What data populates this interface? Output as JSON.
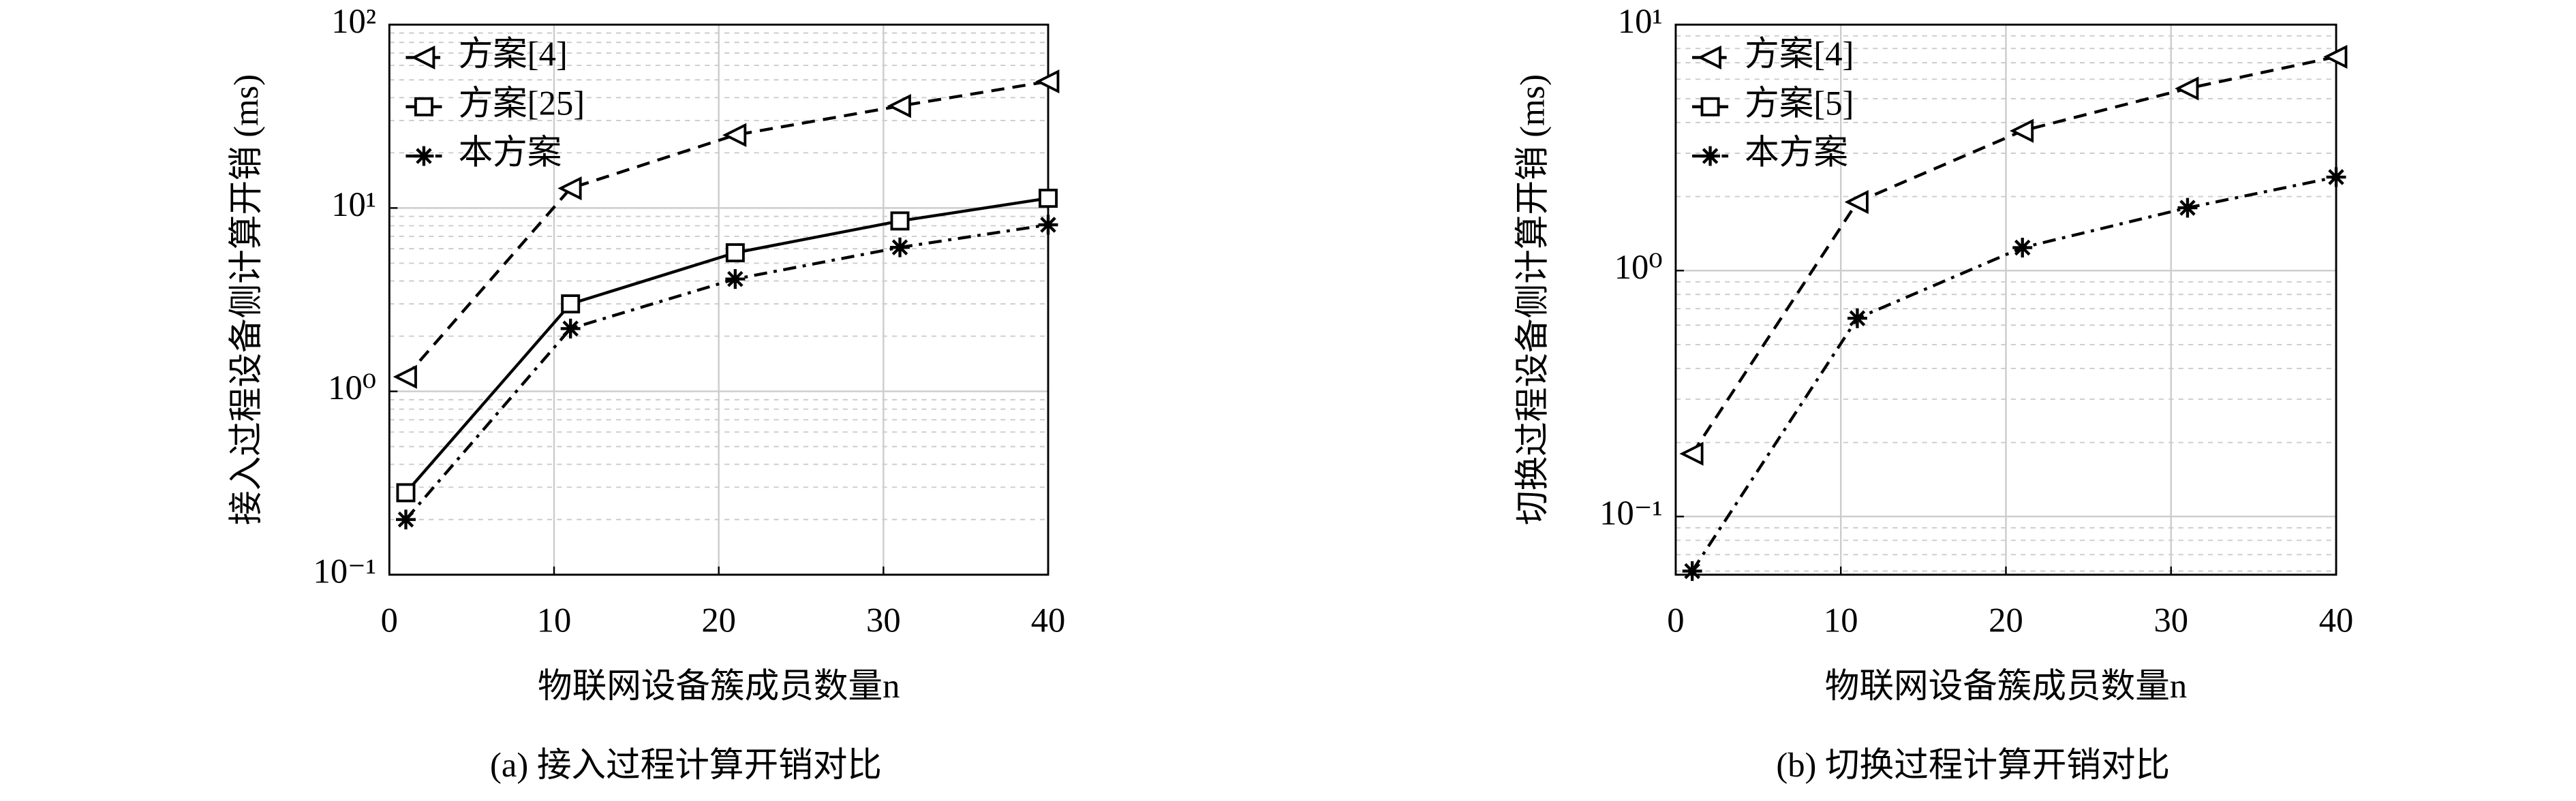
{
  "chart_data": [
    {
      "type": "line",
      "title": "(a) 接入过程计算开销对比",
      "x_label": "物联网设备簇成员数量n",
      "y_label": "接入过程设备侧计算开销 (ms)",
      "x": [
        1,
        11,
        21,
        31,
        40
      ],
      "xlim": [
        0,
        40
      ],
      "xticks": [
        0,
        10,
        20,
        30,
        40
      ],
      "ylim": [
        0.1,
        100
      ],
      "log_y": true,
      "grid": true,
      "legend": "upper left",
      "yticks": [
        {
          "value": 0.1,
          "label": "10⁻¹"
        },
        {
          "value": 1,
          "label": "10⁰"
        },
        {
          "value": 10,
          "label": "10¹"
        },
        {
          "value": 100,
          "label": "10²"
        }
      ],
      "series": [
        {
          "name": "方案[4]",
          "color": "#000000",
          "marker": "triangle-left",
          "line_style": "dashed",
          "values": [
            1.2,
            12.8,
            25,
            36,
            49
          ]
        },
        {
          "name": "方案[25]",
          "color": "#000000",
          "marker": "square",
          "line_style": "solid",
          "values": [
            0.28,
            3.0,
            5.7,
            8.5,
            11.3
          ]
        },
        {
          "name": "本方案",
          "color": "#000000",
          "marker": "star",
          "line_style": "dashdot",
          "values": [
            0.2,
            2.2,
            4.1,
            6.1,
            8.1
          ]
        }
      ]
    },
    {
      "type": "line",
      "title": "(b) 切换过程计算开销对比",
      "x_label": "物联网设备簇成员数量n",
      "y_label": "切换过程设备侧计算开销 (ms)",
      "x": [
        1,
        11,
        21,
        31,
        40
      ],
      "xlim": [
        0,
        40
      ],
      "xticks": [
        0,
        10,
        20,
        30,
        40
      ],
      "ylim": [
        0.058,
        10
      ],
      "log_y": true,
      "grid": true,
      "legend": "upper left",
      "yticks": [
        {
          "value": 0.1,
          "label": "10⁻¹"
        },
        {
          "value": 1,
          "label": "10⁰"
        },
        {
          "value": 10,
          "label": "10¹"
        }
      ],
      "series": [
        {
          "name": "方案[4]",
          "color": "#000000",
          "marker": "triangle-left",
          "line_style": "dashed",
          "values": [
            0.18,
            1.9,
            3.7,
            5.5,
            7.4
          ]
        },
        {
          "name": "方案[5]",
          "color": "#000000",
          "marker": "square",
          "line_style": "solid",
          "values": [
            null,
            null,
            null,
            null,
            null
          ]
        },
        {
          "name": "本方案",
          "color": "#000000",
          "marker": "star",
          "line_style": "dashdot",
          "values": [
            0.06,
            0.64,
            1.24,
            1.8,
            2.4
          ]
        }
      ]
    }
  ]
}
